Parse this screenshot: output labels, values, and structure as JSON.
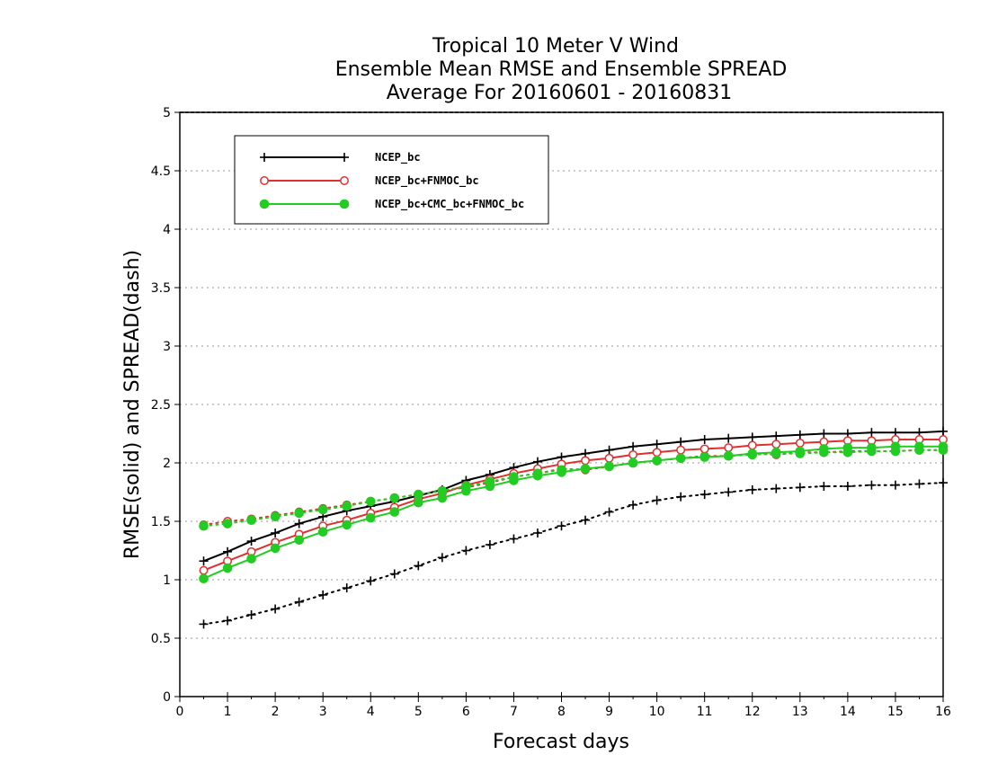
{
  "chart_data": {
    "type": "line",
    "title_lines": [
      "Tropical 10 Meter V Wind",
      "Ensemble Mean RMSE and Ensemble SPREAD",
      "Average For 20160601 - 20160831"
    ],
    "xlabel": "Forecast days",
    "ylabel": "RMSE(solid) and SPREAD(dash)",
    "xlim": [
      0,
      16
    ],
    "ylim": [
      0,
      5
    ],
    "xticks": [
      "0",
      "1",
      "2",
      "3",
      "4",
      "5",
      "6",
      "7",
      "8",
      "9",
      "10",
      "11",
      "12",
      "13",
      "14",
      "15",
      "16"
    ],
    "yticks": [
      "0",
      "0.5",
      "1",
      "1.5",
      "2",
      "2.5",
      "3",
      "3.5",
      "4",
      "4.5",
      "5"
    ],
    "grid": "horizontal-dotted",
    "legend_position": "top-left",
    "x": [
      0.5,
      1,
      1.5,
      2,
      2.5,
      3,
      3.5,
      4,
      4.5,
      5,
      5.5,
      6,
      6.5,
      7,
      7.5,
      8,
      8.5,
      9,
      9.5,
      10,
      10.5,
      11,
      11.5,
      12,
      12.5,
      13,
      13.5,
      14,
      14.5,
      15,
      15.5,
      16
    ],
    "series": [
      {
        "name": "NCEP_bc",
        "color": "#000000",
        "marker": "plus",
        "rmse": [
          1.16,
          1.24,
          1.33,
          1.4,
          1.48,
          1.54,
          1.59,
          1.63,
          1.67,
          1.72,
          1.77,
          1.85,
          1.9,
          1.96,
          2.01,
          2.05,
          2.08,
          2.11,
          2.14,
          2.16,
          2.18,
          2.2,
          2.21,
          2.22,
          2.23,
          2.24,
          2.25,
          2.25,
          2.26,
          2.26,
          2.26,
          2.27
        ],
        "spread": [
          0.62,
          0.65,
          0.7,
          0.75,
          0.81,
          0.87,
          0.93,
          0.99,
          1.05,
          1.12,
          1.19,
          1.25,
          1.3,
          1.35,
          1.4,
          1.46,
          1.51,
          1.58,
          1.64,
          1.68,
          1.71,
          1.73,
          1.75,
          1.77,
          1.78,
          1.79,
          1.8,
          1.8,
          1.81,
          1.81,
          1.82,
          1.83
        ]
      },
      {
        "name": "NCEP_bc+FNMOC_bc",
        "color": "#e03030",
        "marker": "open-circle",
        "rmse": [
          1.08,
          1.16,
          1.24,
          1.32,
          1.39,
          1.46,
          1.51,
          1.57,
          1.62,
          1.69,
          1.74,
          1.81,
          1.86,
          1.91,
          1.95,
          1.99,
          2.02,
          2.04,
          2.07,
          2.09,
          2.11,
          2.12,
          2.13,
          2.15,
          2.16,
          2.17,
          2.18,
          2.19,
          2.19,
          2.2,
          2.2,
          2.2
        ],
        "spread": [
          1.47,
          1.5,
          1.52,
          1.55,
          1.58,
          1.61,
          1.64,
          1.67,
          1.7,
          1.73,
          1.76,
          1.79,
          1.83,
          1.88,
          1.91,
          1.95,
          1.94,
          1.97,
          2.0,
          2.02,
          2.04,
          2.06,
          2.06,
          2.08,
          2.07,
          2.09,
          2.09,
          2.1,
          2.1,
          2.1,
          2.11,
          2.11
        ]
      },
      {
        "name": "NCEP_bc+CMC_bc+FNMOC_bc",
        "color": "#22cc22",
        "marker": "filled-circle",
        "rmse": [
          1.01,
          1.1,
          1.18,
          1.27,
          1.34,
          1.41,
          1.47,
          1.53,
          1.58,
          1.66,
          1.7,
          1.76,
          1.8,
          1.85,
          1.89,
          1.92,
          1.95,
          1.97,
          2.0,
          2.02,
          2.04,
          2.05,
          2.06,
          2.08,
          2.09,
          2.1,
          2.12,
          2.13,
          2.13,
          2.14,
          2.14,
          2.14
        ],
        "spread": [
          1.46,
          1.48,
          1.51,
          1.54,
          1.57,
          1.6,
          1.63,
          1.67,
          1.7,
          1.73,
          1.76,
          1.8,
          1.84,
          1.88,
          1.91,
          1.94,
          1.95,
          1.97,
          2.0,
          2.02,
          2.04,
          2.05,
          2.06,
          2.07,
          2.08,
          2.08,
          2.09,
          2.09,
          2.1,
          2.1,
          2.11,
          2.11
        ]
      }
    ]
  }
}
